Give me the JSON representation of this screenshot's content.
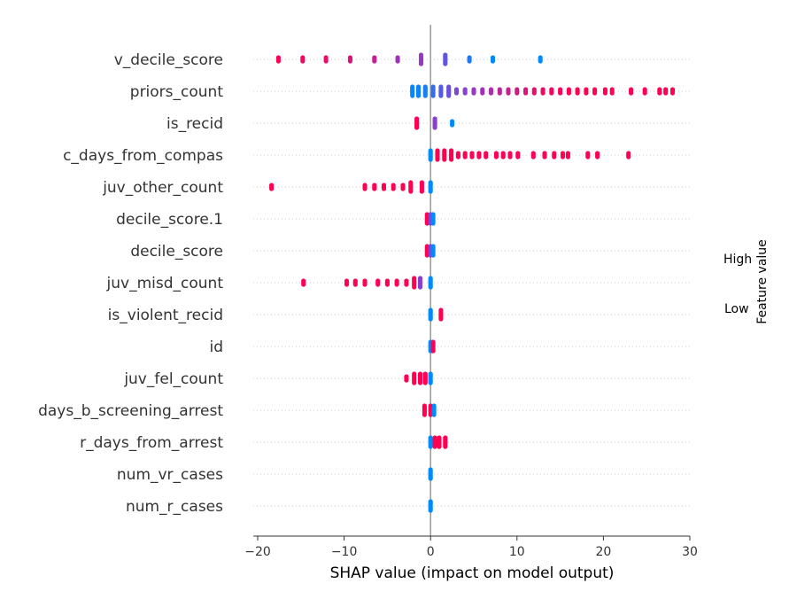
{
  "chart_data": {
    "type": "scatter",
    "xlabel": "SHAP value (impact on model output)",
    "xlim": [
      -20.5,
      30
    ],
    "xticks": [
      -20,
      -10,
      0,
      10,
      20,
      30
    ],
    "colors": {
      "low": "#008bfb",
      "high": "#ff0052",
      "mid": "#8a3fd0",
      "zero_line": "#999999",
      "row_grid": "#cccccc"
    },
    "colorbar": {
      "high_label": "High",
      "low_label": "Low",
      "title": "Feature value"
    },
    "features": [
      {
        "name": "v_decile_score",
        "points": [
          {
            "x": -17.6,
            "c": 1.0
          },
          {
            "x": -14.8,
            "c": 0.95
          },
          {
            "x": -12.1,
            "c": 0.9
          },
          {
            "x": -9.3,
            "c": 0.85
          },
          {
            "x": -6.5,
            "c": 0.75
          },
          {
            "x": -3.8,
            "c": 0.6
          },
          {
            "x": -1.1,
            "c": 0.55
          },
          {
            "x": 1.7,
            "c": 0.35
          },
          {
            "x": 4.5,
            "c": 0.12
          },
          {
            "x": 7.2,
            "c": 0.0
          },
          {
            "x": 12.7,
            "c": 0.0
          }
        ]
      },
      {
        "name": "priors_count",
        "points": [
          {
            "x": -2.1,
            "c": 0.0
          },
          {
            "x": -1.4,
            "c": 0.05
          },
          {
            "x": -0.6,
            "c": 0.1
          },
          {
            "x": 0.3,
            "c": 0.2
          },
          {
            "x": 1.2,
            "c": 0.3
          },
          {
            "x": 2.1,
            "c": 0.38
          },
          {
            "x": 3.0,
            "c": 0.45
          },
          {
            "x": 4.0,
            "c": 0.5
          },
          {
            "x": 5.0,
            "c": 0.55
          },
          {
            "x": 6.0,
            "c": 0.6
          },
          {
            "x": 7.0,
            "c": 0.65
          },
          {
            "x": 8.0,
            "c": 0.7
          },
          {
            "x": 9.0,
            "c": 0.75
          },
          {
            "x": 10.0,
            "c": 0.8
          },
          {
            "x": 11.0,
            "c": 0.85
          },
          {
            "x": 12.0,
            "c": 0.9
          },
          {
            "x": 13.0,
            "c": 0.92
          },
          {
            "x": 14.0,
            "c": 0.95
          },
          {
            "x": 15.0,
            "c": 0.97
          },
          {
            "x": 16.0,
            "c": 1.0
          },
          {
            "x": 17.0,
            "c": 1.0
          },
          {
            "x": 18.0,
            "c": 1.0
          },
          {
            "x": 19.0,
            "c": 1.0
          },
          {
            "x": 20.2,
            "c": 1.0
          },
          {
            "x": 21.0,
            "c": 1.0
          },
          {
            "x": 23.2,
            "c": 1.0
          },
          {
            "x": 24.8,
            "c": 1.0
          },
          {
            "x": 26.5,
            "c": 1.0
          },
          {
            "x": 27.2,
            "c": 1.0
          },
          {
            "x": 28.0,
            "c": 1.0
          }
        ]
      },
      {
        "name": "is_recid",
        "points": [
          {
            "x": -1.6,
            "c": 1.0
          },
          {
            "x": 0.5,
            "c": 0.5
          },
          {
            "x": 2.5,
            "c": 0.0
          }
        ]
      },
      {
        "name": "c_days_from_compas",
        "points": [
          {
            "x": 0.0,
            "c": 0.0
          },
          {
            "x": 0.8,
            "c": 1.0
          },
          {
            "x": 1.6,
            "c": 1.0
          },
          {
            "x": 2.4,
            "c": 1.0
          },
          {
            "x": 3.2,
            "c": 1.0
          },
          {
            "x": 4.0,
            "c": 1.0
          },
          {
            "x": 4.8,
            "c": 1.0
          },
          {
            "x": 5.6,
            "c": 1.0
          },
          {
            "x": 6.4,
            "c": 1.0
          },
          {
            "x": 7.6,
            "c": 1.0
          },
          {
            "x": 8.4,
            "c": 1.0
          },
          {
            "x": 9.2,
            "c": 1.0
          },
          {
            "x": 10.1,
            "c": 1.0
          },
          {
            "x": 11.9,
            "c": 1.0
          },
          {
            "x": 13.2,
            "c": 1.0
          },
          {
            "x": 14.3,
            "c": 1.0
          },
          {
            "x": 15.3,
            "c": 1.0
          },
          {
            "x": 15.9,
            "c": 1.0
          },
          {
            "x": 18.2,
            "c": 1.0
          },
          {
            "x": 19.3,
            "c": 1.0
          },
          {
            "x": 22.9,
            "c": 1.0
          }
        ]
      },
      {
        "name": "juv_other_count",
        "points": [
          {
            "x": -18.4,
            "c": 1.0
          },
          {
            "x": -7.6,
            "c": 1.0
          },
          {
            "x": -6.5,
            "c": 1.0
          },
          {
            "x": -5.4,
            "c": 1.0
          },
          {
            "x": -4.3,
            "c": 1.0
          },
          {
            "x": -3.2,
            "c": 1.0
          },
          {
            "x": -2.3,
            "c": 1.0
          },
          {
            "x": -1.0,
            "c": 1.0
          },
          {
            "x": 0.0,
            "c": 0.0
          }
        ]
      },
      {
        "name": "decile_score.1",
        "points": [
          {
            "x": -0.4,
            "c": 1.0
          },
          {
            "x": 0.0,
            "c": 0.5
          },
          {
            "x": 0.3,
            "c": 0.0
          }
        ]
      },
      {
        "name": "decile_score",
        "points": [
          {
            "x": -0.4,
            "c": 1.0
          },
          {
            "x": 0.0,
            "c": 0.5
          },
          {
            "x": 0.3,
            "c": 0.0
          }
        ]
      },
      {
        "name": "juv_misd_count",
        "points": [
          {
            "x": -14.7,
            "c": 1.0
          },
          {
            "x": -9.7,
            "c": 1.0
          },
          {
            "x": -8.7,
            "c": 1.0
          },
          {
            "x": -7.6,
            "c": 1.0
          },
          {
            "x": -6.1,
            "c": 1.0
          },
          {
            "x": -5.0,
            "c": 1.0
          },
          {
            "x": -3.9,
            "c": 1.0
          },
          {
            "x": -2.8,
            "c": 1.0
          },
          {
            "x": -1.9,
            "c": 1.0
          },
          {
            "x": -1.2,
            "c": 0.5
          },
          {
            "x": 0.0,
            "c": 0.0
          }
        ]
      },
      {
        "name": "is_violent_recid",
        "points": [
          {
            "x": 0.0,
            "c": 0.0
          },
          {
            "x": 1.2,
            "c": 1.0
          }
        ]
      },
      {
        "name": "id",
        "points": [
          {
            "x": 0.0,
            "c": 0.0
          },
          {
            "x": 0.3,
            "c": 1.0
          }
        ]
      },
      {
        "name": "juv_fel_count",
        "points": [
          {
            "x": -2.8,
            "c": 1.0
          },
          {
            "x": -1.9,
            "c": 1.0
          },
          {
            "x": -1.2,
            "c": 1.0
          },
          {
            "x": -0.6,
            "c": 1.0
          },
          {
            "x": 0.0,
            "c": 0.0
          }
        ]
      },
      {
        "name": "days_b_screening_arrest",
        "points": [
          {
            "x": -0.7,
            "c": 1.0
          },
          {
            "x": 0.0,
            "c": 1.0
          },
          {
            "x": 0.4,
            "c": 0.0
          }
        ]
      },
      {
        "name": "r_days_from_arrest",
        "points": [
          {
            "x": 0.0,
            "c": 0.0
          },
          {
            "x": 0.5,
            "c": 1.0
          },
          {
            "x": 1.0,
            "c": 1.0
          },
          {
            "x": 1.7,
            "c": 1.0
          }
        ]
      },
      {
        "name": "num_vr_cases",
        "points": [
          {
            "x": 0.0,
            "c": 0.0
          }
        ]
      },
      {
        "name": "num_r_cases",
        "points": [
          {
            "x": 0.0,
            "c": 0.0
          }
        ]
      }
    ]
  }
}
